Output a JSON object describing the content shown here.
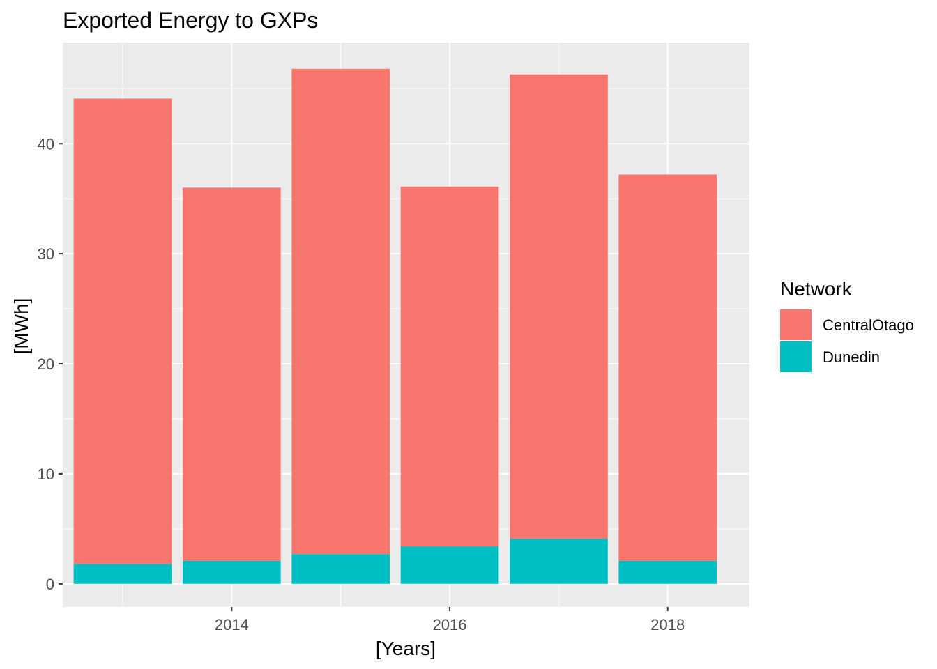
{
  "chart_data": {
    "type": "bar",
    "stacked": true,
    "title": "Exported Energy to GXPs",
    "xlabel": "[Years]",
    "ylabel": "[MWh]",
    "categories": [
      "2013",
      "2014",
      "2015",
      "2016",
      "2017",
      "2018"
    ],
    "x": [
      2013,
      2014,
      2015,
      2016,
      2017,
      2018
    ],
    "x_ticks": [
      "2014",
      "2016",
      "2018"
    ],
    "y_ticks": [
      "0",
      "10",
      "20",
      "30",
      "40"
    ],
    "xlim": [
      2012.45,
      2018.75
    ],
    "ylim": [
      -2.1,
      49.2
    ],
    "grid": true,
    "legend": {
      "title": "Network",
      "position": "right",
      "entries": [
        {
          "label": "CentralOtago",
          "color": "#F8766D"
        },
        {
          "label": "Dunedin",
          "color": "#00BFC4"
        }
      ]
    },
    "series": [
      {
        "name": "Dunedin",
        "color": "#00BFC4",
        "values": [
          1.8,
          2.1,
          2.7,
          3.4,
          4.1,
          2.1
        ]
      },
      {
        "name": "CentralOtago",
        "color": "#F8766D",
        "values": [
          42.3,
          33.9,
          44.1,
          32.7,
          42.2,
          35.1
        ]
      }
    ]
  }
}
